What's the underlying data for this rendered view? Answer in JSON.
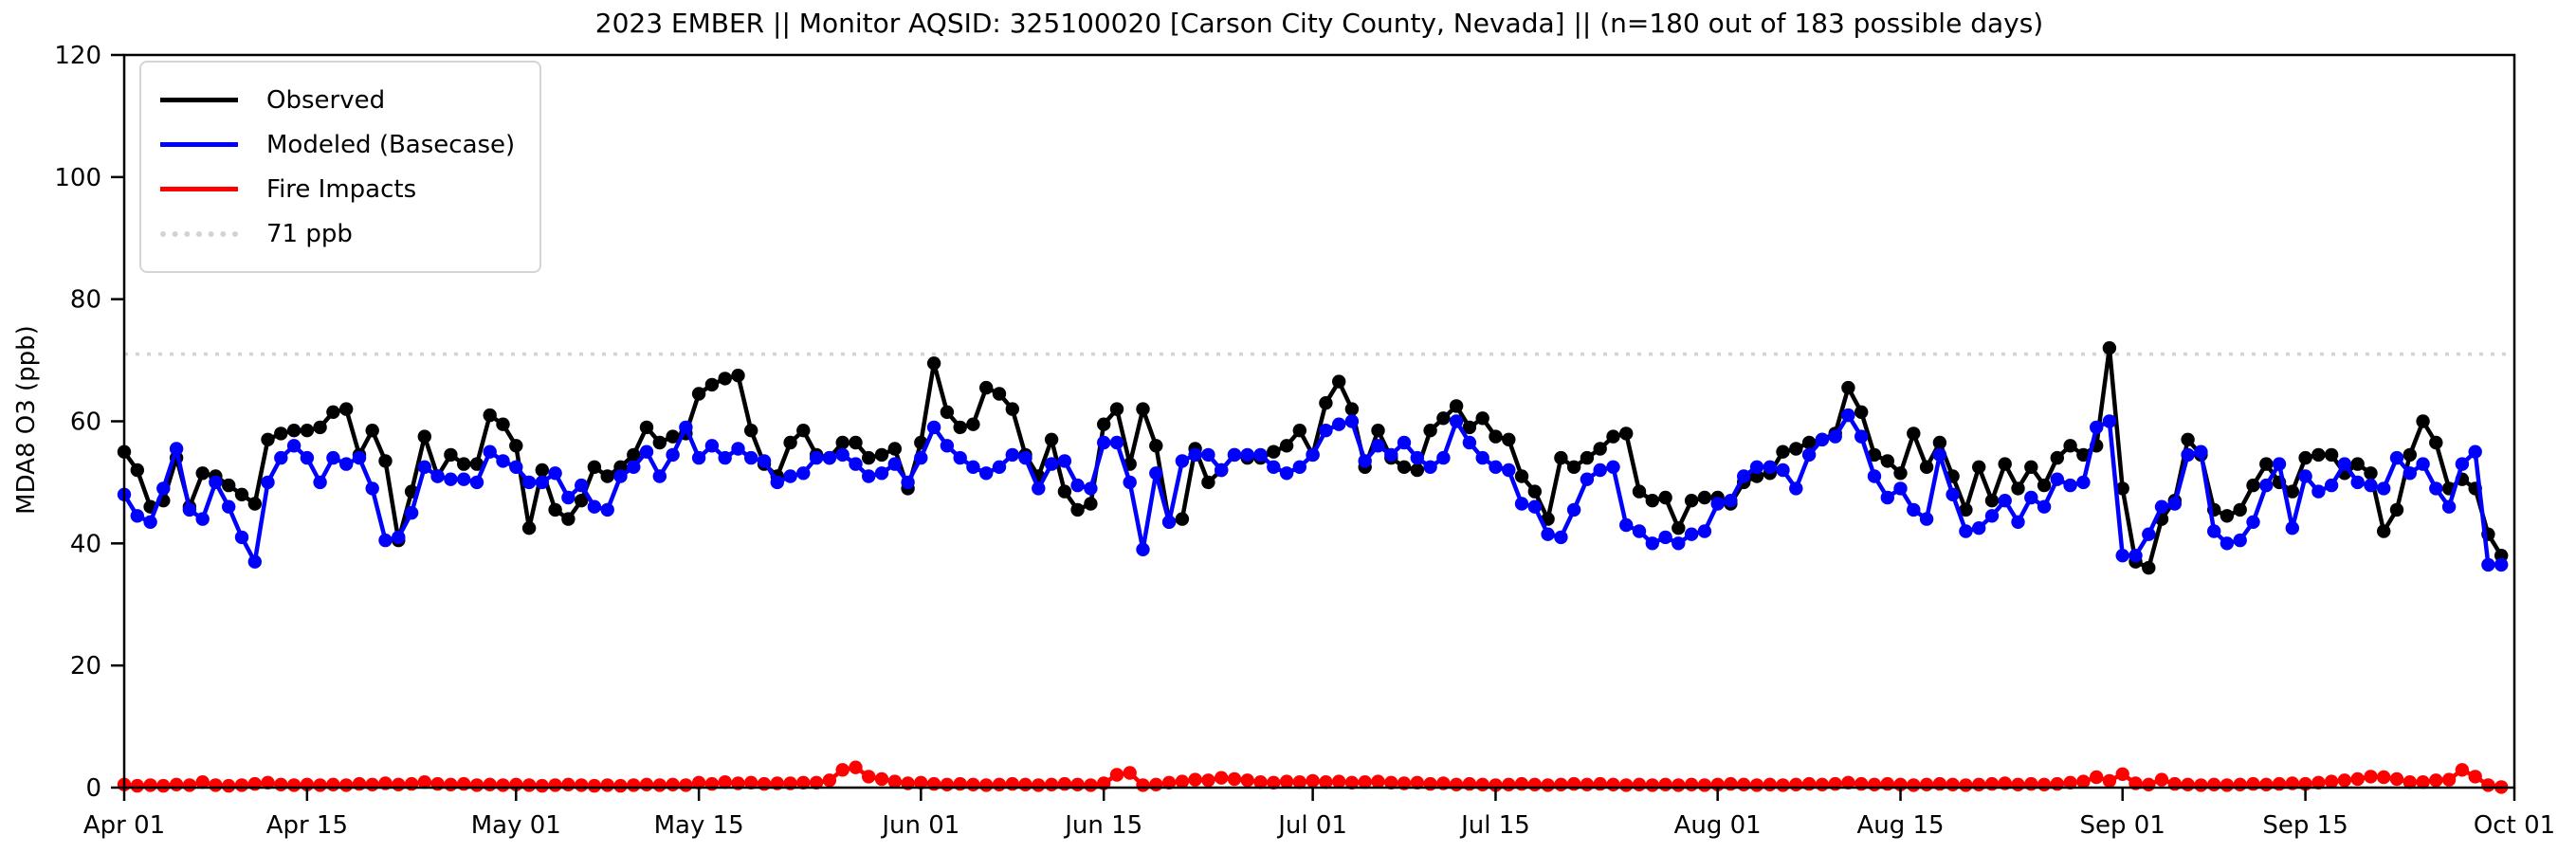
{
  "chart_data": {
    "type": "line",
    "title": "2023 EMBER || Monitor AQSID: 325100020 [Carson City County, Nevada] || (n=180 out of 183 possible days)",
    "ylabel": "MDA8 O3 (ppb)",
    "xlabel": "",
    "ylim": [
      0,
      120
    ],
    "y_ticks": [
      0,
      20,
      40,
      60,
      80,
      100,
      120
    ],
    "x_unit": "daily values, Apr 01 - Sep 30 2023 (day index 0-182 from Apr 01)",
    "x_tick_days": [
      0,
      14,
      30,
      44,
      61,
      75,
      91,
      105,
      122,
      136,
      153,
      167,
      183
    ],
    "x_tick_labels": [
      "Apr 01",
      "Apr 15",
      "May 01",
      "May 15",
      "Jun 01",
      "Jun 15",
      "Jul 01",
      "Jul 15",
      "Aug 01",
      "Aug 15",
      "Sep 01",
      "Sep 15",
      "Oct 01"
    ],
    "grid": false,
    "legend_position": "upper left",
    "threshold": {
      "label": "71 ppb",
      "value": 71,
      "color": "#d3d3d3",
      "style": "dotted"
    },
    "legend": [
      {
        "label": "Observed",
        "color": "#000000",
        "style": "solid"
      },
      {
        "label": "Modeled (Basecase)",
        "color": "#0000ff",
        "style": "solid"
      },
      {
        "label": "Fire Impacts",
        "color": "#ff0000",
        "style": "solid"
      },
      {
        "label": "71 ppb",
        "color": "#d3d3d3",
        "style": "dotted"
      }
    ],
    "series": [
      {
        "name": "Observed",
        "color": "#000000",
        "values": [
          55,
          52,
          46,
          47,
          54,
          46,
          51.5,
          51,
          49.5,
          48,
          46.5,
          57,
          58,
          58.5,
          58.5,
          59,
          61.5,
          62,
          54.5,
          58.5,
          53.5,
          40.5,
          48.5,
          57.5,
          51,
          54.5,
          53,
          53,
          61,
          59.5,
          56,
          42.5,
          52,
          45.5,
          44,
          47,
          52.5,
          51,
          52.5,
          54.5,
          59,
          56.5,
          57.5,
          58,
          64.5,
          66,
          67,
          67.5,
          58.5,
          53,
          51,
          56.5,
          58.5,
          54.5,
          54,
          56.5,
          56.5,
          54,
          54.5,
          55.5,
          49,
          56.5,
          69.5,
          61.5,
          59,
          59.5,
          65.5,
          64.5,
          62,
          54.5,
          51,
          57,
          48.5,
          45.5,
          46.5,
          59.5,
          62,
          53,
          62,
          56,
          43.5,
          44,
          55.5,
          50,
          52,
          54.5,
          54,
          54,
          55,
          56,
          58.5,
          54.5,
          63,
          66.5,
          62,
          52.5,
          58.5,
          54,
          52.5,
          52,
          58.5,
          60.5,
          62.5,
          59,
          60.5,
          57.5,
          57,
          51,
          48.5,
          44,
          54,
          52.5,
          54,
          55.5,
          57.5,
          58,
          48.5,
          47,
          47.5,
          42.5,
          47,
          47.5,
          47.5,
          46.5,
          50,
          51,
          51.5,
          55,
          55.5,
          56.5,
          57,
          58,
          65.5,
          61.5,
          54.5,
          53.5,
          51.5,
          58,
          52.5,
          56.5,
          51,
          45.5,
          52.5,
          47,
          53,
          49,
          52.5,
          49.5,
          54,
          56,
          54.5,
          56,
          72,
          49,
          37,
          36,
          44,
          47,
          57,
          54.5,
          45.5,
          44.5,
          45.5,
          49.5,
          53,
          50,
          48.5,
          54,
          54.5,
          54.5,
          51.5,
          53,
          51.5,
          42,
          45.5,
          54.5,
          60,
          56.5,
          49,
          50.5,
          49,
          41.5,
          38
        ]
      },
      {
        "name": "Modeled (Basecase)",
        "color": "#0000ff",
        "values": [
          48,
          44.5,
          43.5,
          49,
          55.5,
          45.5,
          44,
          50,
          46,
          41,
          37,
          50,
          54,
          56,
          54,
          50,
          54,
          53,
          54,
          49,
          40.5,
          41,
          45,
          52.5,
          51,
          50.5,
          50.5,
          50,
          55,
          53.5,
          52.5,
          50,
          50,
          51.5,
          47.5,
          49.5,
          46,
          45.5,
          51,
          52.5,
          55,
          51,
          54.5,
          59,
          54,
          56,
          54,
          55.5,
          54,
          53.5,
          50,
          51,
          51.5,
          54,
          54,
          54.5,
          53,
          51,
          51.5,
          53,
          50,
          54,
          59,
          56,
          54,
          52.5,
          51.5,
          52.5,
          54.5,
          54,
          49,
          53,
          53.5,
          49.5,
          49,
          56.5,
          56.5,
          50,
          39,
          51.5,
          43.5,
          53.5,
          54.5,
          54.5,
          52,
          54.5,
          54.5,
          54.5,
          52.5,
          51.5,
          52.5,
          54.5,
          58.5,
          59.5,
          60,
          53.5,
          56,
          54.5,
          56.5,
          54,
          52.5,
          54,
          60,
          56.5,
          54,
          52.5,
          52,
          46.5,
          46,
          41.5,
          41,
          45.5,
          50.5,
          52,
          52.5,
          43,
          42,
          40,
          41,
          40,
          41.5,
          42,
          46.5,
          47,
          51,
          52.5,
          52.5,
          52,
          49,
          54.5,
          57,
          57.5,
          61,
          57.5,
          51,
          47.5,
          49,
          45.5,
          44,
          54.5,
          48,
          42,
          42.5,
          44.5,
          47,
          43.5,
          47.5,
          46,
          50.5,
          49.5,
          50,
          59,
          60,
          38,
          38,
          41.5,
          46,
          46.5,
          54.5,
          55,
          42,
          40,
          40.5,
          43.5,
          49.5,
          53,
          42.5,
          51,
          48.5,
          49.5,
          53,
          50,
          49.5,
          49,
          54,
          51.5,
          53,
          49,
          46,
          53,
          55,
          36.5,
          36.5
        ]
      },
      {
        "name": "Fire Impacts",
        "color": "#ff0000",
        "values": [
          0.5,
          0.3,
          0.4,
          0.3,
          0.5,
          0.4,
          0.9,
          0.4,
          0.3,
          0.4,
          0.6,
          0.8,
          0.5,
          0.4,
          0.5,
          0.4,
          0.5,
          0.4,
          0.6,
          0.5,
          0.7,
          0.5,
          0.6,
          0.9,
          0.6,
          0.5,
          0.6,
          0.4,
          0.5,
          0.4,
          0.5,
          0.4,
          0.3,
          0.4,
          0.5,
          0.4,
          0.3,
          0.4,
          0.3,
          0.4,
          0.5,
          0.4,
          0.5,
          0.4,
          0.8,
          0.6,
          0.9,
          0.7,
          0.8,
          0.6,
          0.7,
          0.7,
          0.8,
          0.8,
          1.2,
          2.9,
          3.3,
          1.8,
          1.4,
          1.0,
          0.7,
          0.8,
          0.6,
          0.5,
          0.6,
          0.5,
          0.4,
          0.5,
          0.6,
          0.5,
          0.4,
          0.5,
          0.6,
          0.5,
          0.4,
          0.7,
          2.1,
          2.4,
          0.4,
          0.5,
          0.8,
          1.0,
          1.3,
          1.2,
          1.6,
          1.4,
          1.2,
          0.9,
          0.8,
          1.0,
          0.9,
          1.1,
          0.9,
          1.0,
          0.8,
          0.9,
          1.0,
          0.8,
          0.7,
          0.8,
          0.6,
          0.7,
          0.5,
          0.6,
          0.5,
          0.4,
          0.5,
          0.6,
          0.5,
          0.4,
          0.5,
          0.6,
          0.5,
          0.6,
          0.5,
          0.4,
          0.5,
          0.4,
          0.5,
          0.4,
          0.5,
          0.4,
          0.5,
          0.6,
          0.5,
          0.4,
          0.5,
          0.4,
          0.5,
          0.6,
          0.5,
          0.6,
          0.8,
          0.6,
          0.5,
          0.6,
          0.5,
          0.4,
          0.5,
          0.6,
          0.5,
          0.4,
          0.5,
          0.6,
          0.7,
          0.5,
          0.6,
          0.5,
          0.6,
          0.8,
          1.0,
          1.7,
          1.1,
          2.2,
          0.7,
          0.5,
          1.3,
          0.6,
          0.5,
          0.4,
          0.5,
          0.4,
          0.5,
          0.6,
          0.5,
          0.6,
          0.7,
          0.6,
          0.8,
          1.0,
          1.2,
          1.4,
          1.8,
          1.7,
          1.4,
          0.9,
          0.9,
          1.2,
          1.3,
          2.9,
          1.8,
          0.4,
          0.1
        ]
      }
    ]
  }
}
